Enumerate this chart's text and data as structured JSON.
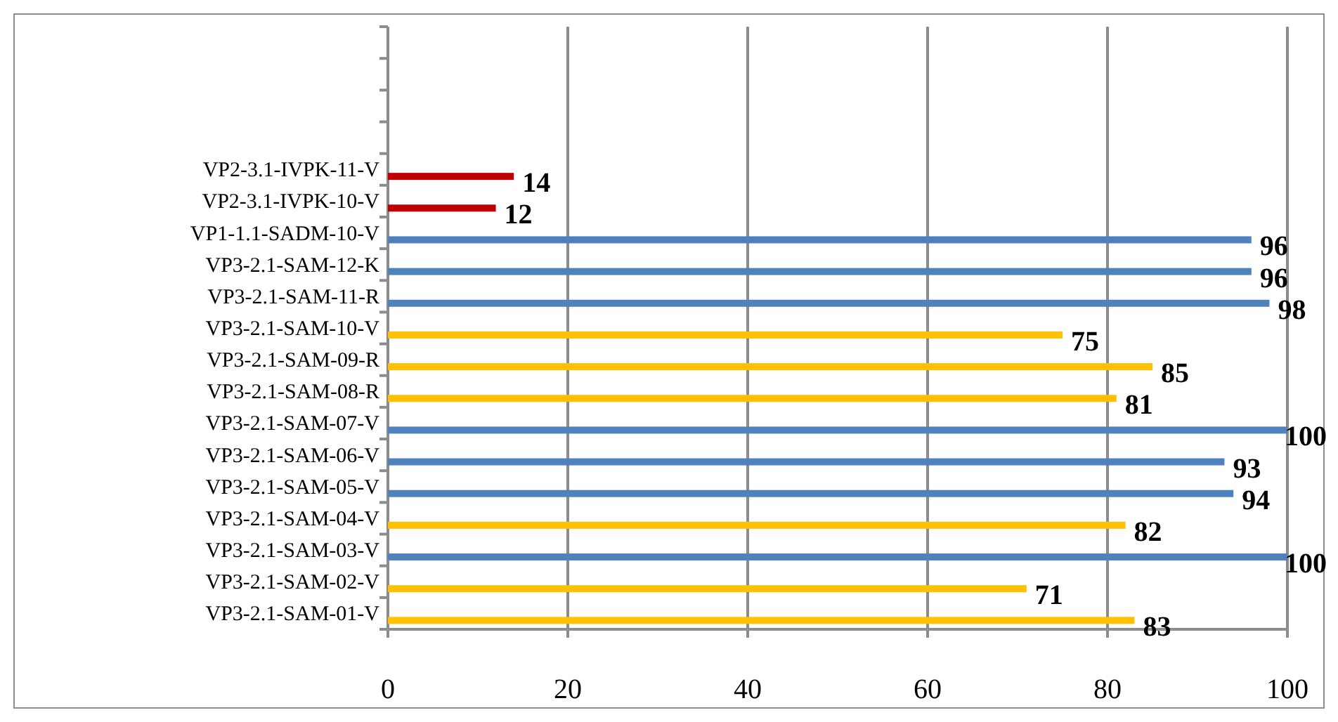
{
  "chart_data": {
    "type": "bar",
    "orientation": "horizontal",
    "categories": [
      null,
      null,
      null,
      null,
      "VP2-3.1-IVPK-11-V",
      "VP2-3.1-IVPK-10-V",
      "VP1-1.1-SADM-10-V",
      "VP3-2.1-SAM-12-K",
      "VP3-2.1-SAM-11-R",
      "VP3-2.1-SAM-10-V",
      "VP3-2.1-SAM-09-R",
      "VP3-2.1-SAM-08-R",
      "VP3-2.1-SAM-07-V",
      "VP3-2.1-SAM-06-V",
      "VP3-2.1-SAM-05-V",
      "VP3-2.1-SAM-04-V",
      "VP3-2.1-SAM-03-V",
      "VP3-2.1-SAM-02-V",
      "VP3-2.1-SAM-01-V"
    ],
    "values": [
      null,
      null,
      null,
      null,
      14,
      12,
      96,
      96,
      98,
      75,
      85,
      81,
      100,
      93,
      94,
      82,
      100,
      71,
      83
    ],
    "colors": [
      null,
      null,
      null,
      null,
      "#c00000",
      "#c00000",
      "#4f81bd",
      "#4f81bd",
      "#4f81bd",
      "#ffc000",
      "#ffc000",
      "#ffc000",
      "#4f81bd",
      "#4f81bd",
      "#4f81bd",
      "#ffc000",
      "#4f81bd",
      "#ffc000",
      "#ffc000"
    ],
    "xlim": [
      0,
      100
    ],
    "xticks": [
      0,
      20,
      40,
      60,
      80,
      100
    ],
    "grid": "x",
    "data_labels": true
  }
}
